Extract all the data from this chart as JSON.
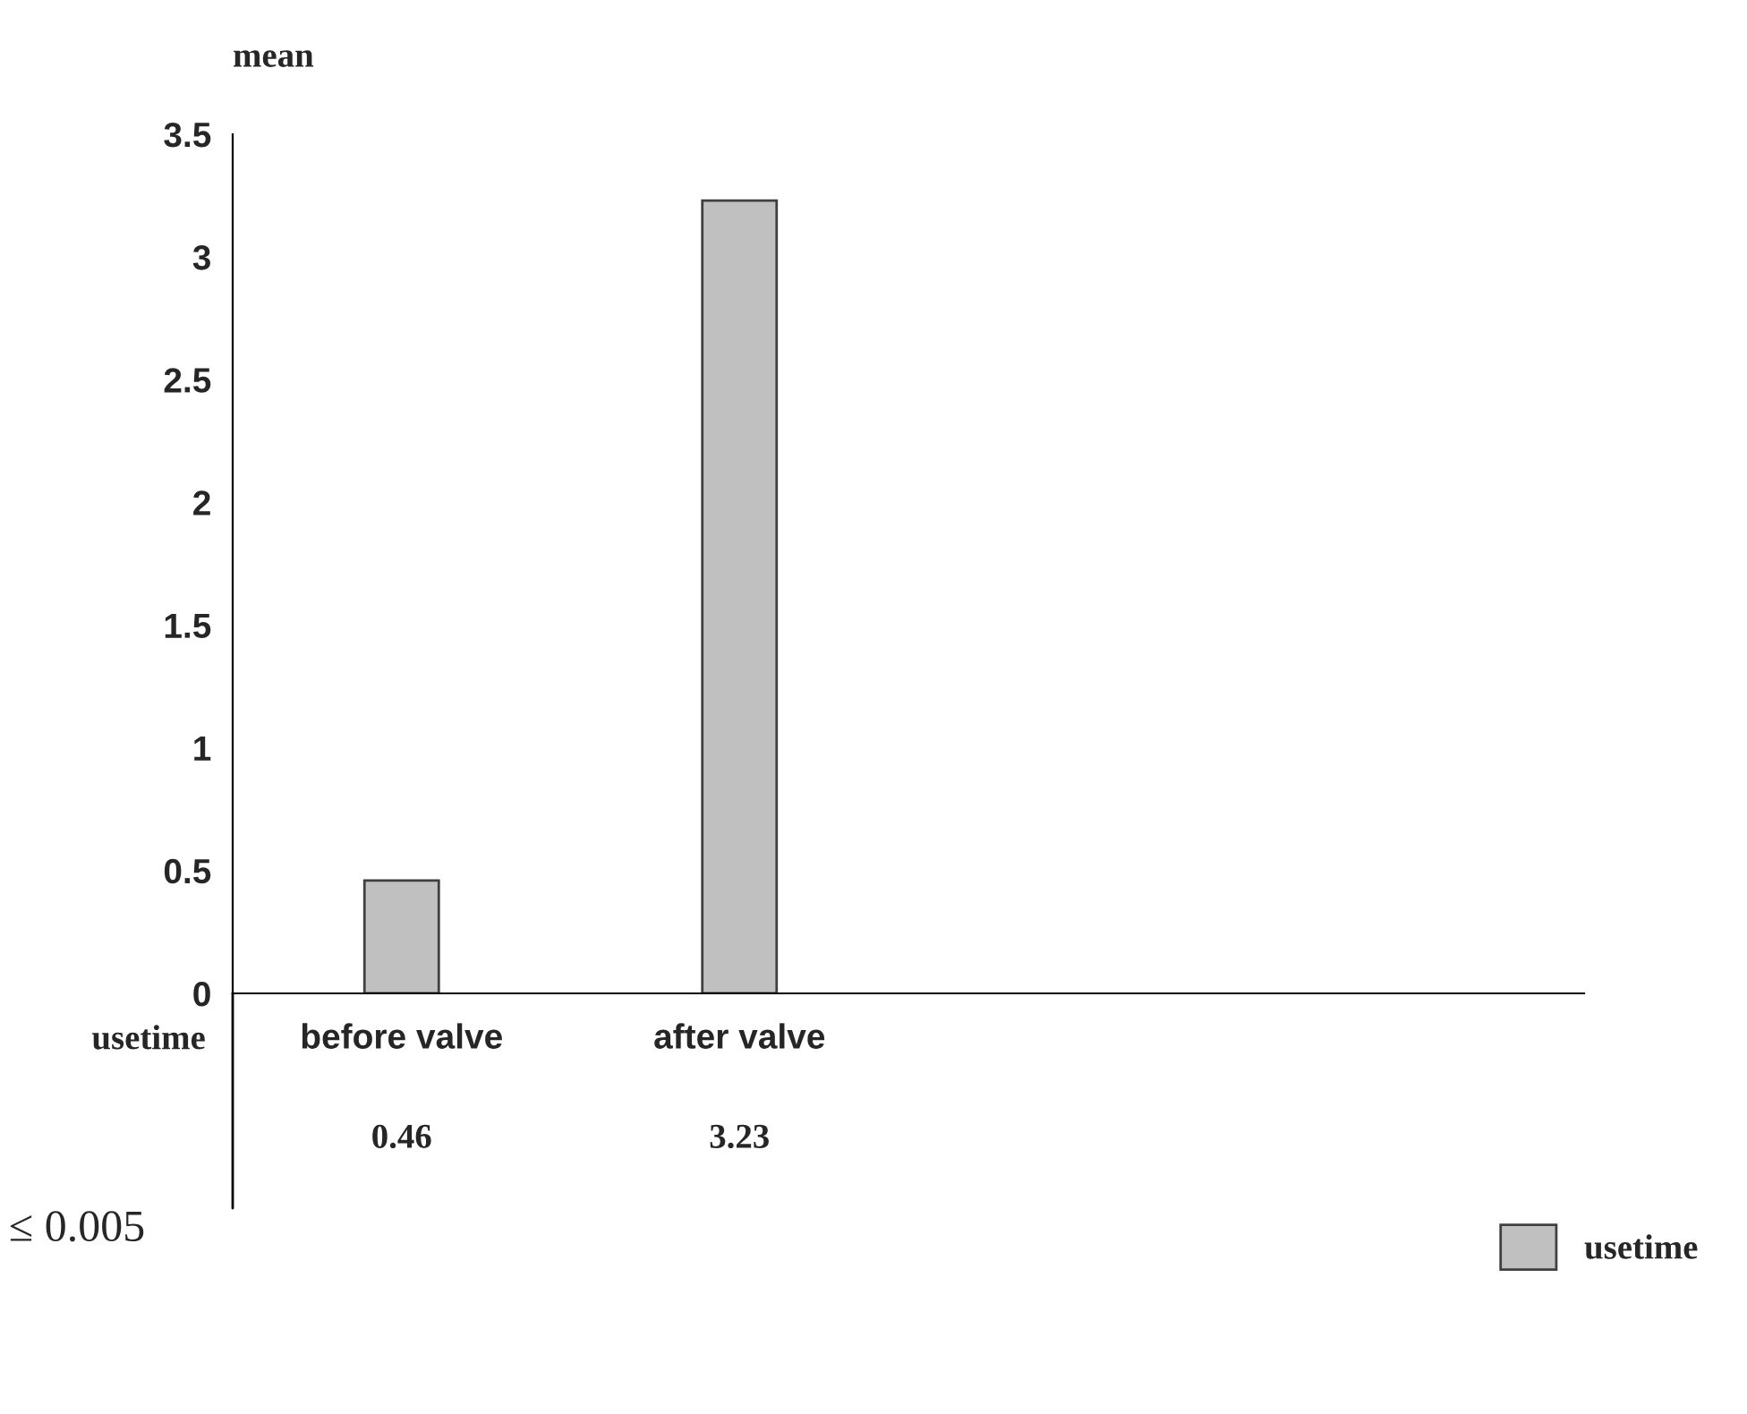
{
  "chart_data": {
    "type": "bar",
    "ylabel": "mean",
    "categories": [
      "before valve",
      "after valve",
      null,
      null
    ],
    "series": [
      {
        "name": "usetime",
        "color": "#c0c0c0",
        "values": [
          0.46,
          3.23,
          null,
          null
        ]
      }
    ],
    "ylim": [
      0,
      3.5
    ],
    "yticks": [
      0,
      0.5,
      1,
      1.5,
      2,
      2.5,
      3,
      3.5
    ],
    "data_labels": true,
    "grid": false,
    "legend": "bottom right",
    "annotations": [
      "≤ 0.005"
    ]
  }
}
